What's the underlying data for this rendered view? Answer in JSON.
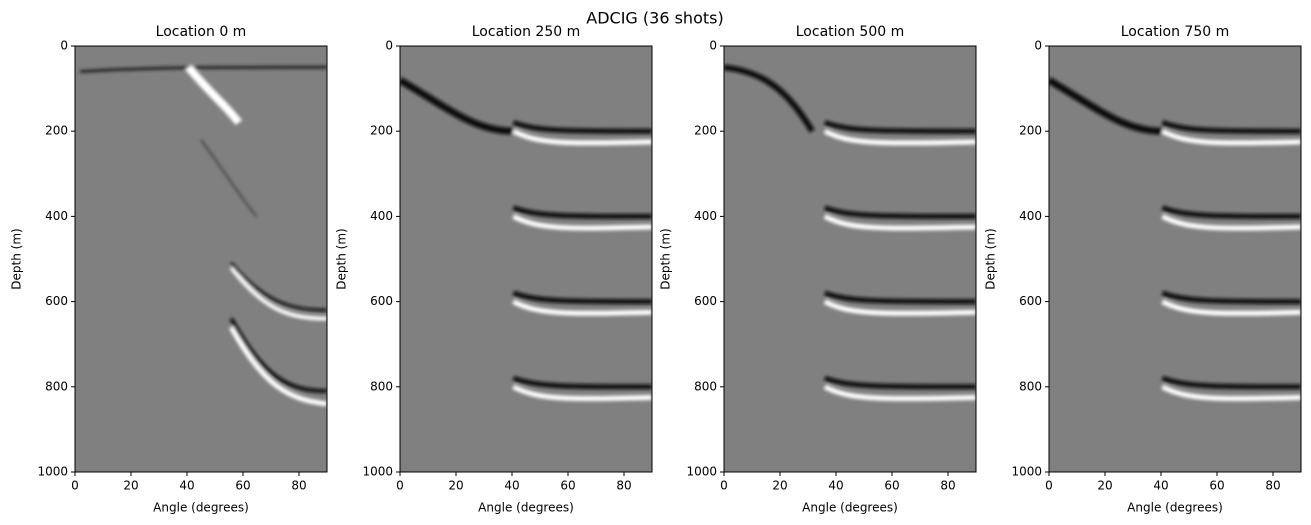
{
  "title": "ADCIG  (36 shots)",
  "chart_data": [
    {
      "type": "image",
      "title": "Location 0 m",
      "x_label": "Angle (degrees)",
      "y_label": "Depth (m)",
      "colormap": "gray",
      "xlim": [
        0,
        90
      ],
      "ylim": [
        1000,
        0
      ],
      "xticks": [
        0,
        20,
        40,
        60,
        80
      ],
      "yticks": [
        0,
        200,
        400,
        600,
        800,
        1000
      ]
    },
    {
      "type": "image",
      "title": "Location 250 m",
      "x_label": "Angle (degrees)",
      "y_label": "Depth (m)",
      "colormap": "gray",
      "xlim": [
        0,
        90
      ],
      "ylim": [
        1000,
        0
      ],
      "xticks": [
        0,
        20,
        40,
        60,
        80
      ],
      "yticks": [
        0,
        200,
        400,
        600,
        800,
        1000
      ]
    },
    {
      "type": "image",
      "title": "Location 500 m",
      "x_label": "Angle (degrees)",
      "y_label": "Depth (m)",
      "colormap": "gray",
      "xlim": [
        0,
        90
      ],
      "ylim": [
        1000,
        0
      ],
      "xticks": [
        0,
        20,
        40,
        60,
        80
      ],
      "yticks": [
        0,
        200,
        400,
        600,
        800,
        1000
      ]
    },
    {
      "type": "image",
      "title": "Location 750 m",
      "x_label": "Angle (degrees)",
      "y_label": "Depth (m)",
      "colormap": "gray",
      "xlim": [
        0,
        90
      ],
      "ylim": [
        1000,
        0
      ],
      "xticks": [
        0,
        20,
        40,
        60,
        80
      ],
      "yticks": [
        0,
        200,
        400,
        600,
        800,
        1000
      ]
    }
  ]
}
